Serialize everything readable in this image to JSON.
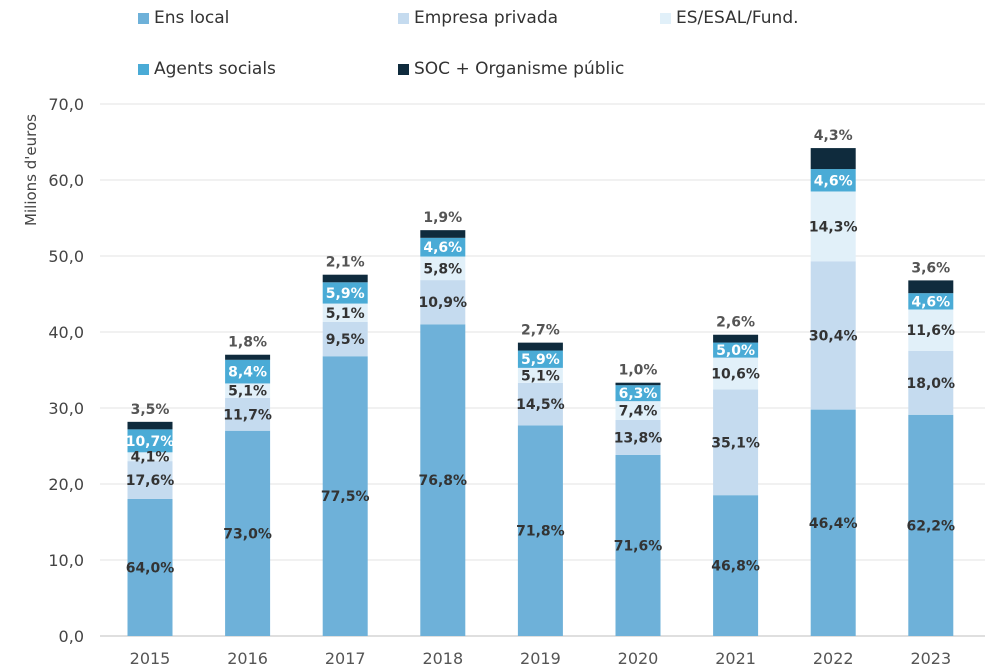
{
  "chart_data": {
    "type": "bar",
    "stacked": true,
    "ylabel": "Milions d'euros",
    "ylim": [
      0,
      70
    ],
    "yticks": [
      "0,0",
      "10,0",
      "20,0",
      "30,0",
      "40,0",
      "50,0",
      "60,0",
      "70,0"
    ],
    "categories": [
      "2015",
      "2016",
      "2017",
      "2018",
      "2019",
      "2020",
      "2021",
      "2022",
      "2023"
    ],
    "totals": [
      28.2,
      37.0,
      47.5,
      53.4,
      38.6,
      33.3,
      39.6,
      64.2,
      46.8
    ],
    "legend_position": "top",
    "series": [
      {
        "name": "Ens local",
        "color": "#6EB1D9",
        "share_labels": [
          "64,0%",
          "73,0%",
          "77,5%",
          "76,8%",
          "71,8%",
          "71,6%",
          "46,8%",
          "46,4%",
          "62,2%"
        ],
        "values": [
          18.05,
          27.01,
          36.81,
          41.01,
          27.71,
          23.84,
          18.53,
          29.79,
          29.11
        ]
      },
      {
        "name": "Empresa privada",
        "color": "#C5DBEF",
        "share_labels": [
          "17,6%",
          "11,7%",
          "9,5%",
          "10,9%",
          "14,5%",
          "13,8%",
          "35,1%",
          "30,4%",
          "18,0%"
        ],
        "values": [
          4.96,
          4.33,
          4.51,
          5.82,
          5.6,
          4.6,
          13.9,
          19.52,
          8.42
        ]
      },
      {
        "name": "ES/ESAL/Fund.",
        "color": "#E1F0F9",
        "share_labels": [
          "4,1%",
          "5,1%",
          "5,1%",
          "5,8%",
          "5,1%",
          "7,4%",
          "10,6%",
          "14,3%",
          "11,6%"
        ],
        "values": [
          1.16,
          1.89,
          2.42,
          3.1,
          1.97,
          2.46,
          4.2,
          9.18,
          5.43
        ]
      },
      {
        "name": "Agents socials",
        "color": "#4AABD6",
        "share_labels": [
          "10,7%",
          "8,4%",
          "5,9%",
          "4,6%",
          "5,9%",
          "6,3%",
          "5,0%",
          "4,6%",
          "4,6%"
        ],
        "values": [
          3.02,
          3.11,
          2.8,
          2.46,
          2.28,
          2.1,
          1.98,
          2.95,
          2.15
        ]
      },
      {
        "name": "SOC + Organisme públic",
        "color": "#0F2B3D",
        "share_labels": [
          "3,5%",
          "1,8%",
          "2,1%",
          "1,9%",
          "2,7%",
          "1,0%",
          "2,6%",
          "4,3%",
          "3,6%"
        ],
        "values": [
          0.99,
          0.67,
          1.0,
          1.01,
          1.04,
          0.33,
          1.03,
          2.76,
          1.68
        ]
      }
    ],
    "grid": true
  }
}
